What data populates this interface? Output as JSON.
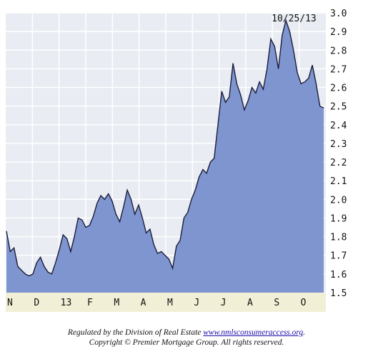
{
  "chart_data": {
    "type": "area",
    "title": "",
    "xlabel": "",
    "ylabel": "",
    "ylim": [
      1.5,
      3.0
    ],
    "yticks": [
      "3.0",
      "2.9",
      "2.8",
      "2.7",
      "2.6",
      "2.5",
      "2.4",
      "2.3",
      "2.2",
      "2.1",
      "2.0",
      "1.9",
      "1.8",
      "1.7",
      "1.6",
      "1.5"
    ],
    "xticks": [
      "N",
      "D",
      "13",
      "F",
      "M",
      "A",
      "M",
      "J",
      "J",
      "A",
      "S",
      "O"
    ],
    "grid": true,
    "annotation": {
      "text": "10/25/13",
      "value": 2.96
    },
    "series": [
      {
        "values": [
          1.83,
          1.72,
          1.74,
          1.64,
          1.62,
          1.6,
          1.59,
          1.6,
          1.66,
          1.69,
          1.64,
          1.61,
          1.6,
          1.66,
          1.73,
          1.81,
          1.79,
          1.72,
          1.8,
          1.9,
          1.89,
          1.85,
          1.86,
          1.91,
          1.98,
          2.02,
          2.0,
          2.03,
          1.99,
          1.92,
          1.88,
          1.96,
          2.05,
          2.0,
          1.92,
          1.97,
          1.9,
          1.82,
          1.84,
          1.76,
          1.71,
          1.72,
          1.7,
          1.68,
          1.63,
          1.75,
          1.78,
          1.9,
          1.93,
          2.0,
          2.05,
          2.12,
          2.16,
          2.14,
          2.2,
          2.22,
          2.4,
          2.58,
          2.52,
          2.55,
          2.73,
          2.62,
          2.56,
          2.48,
          2.53,
          2.6,
          2.57,
          2.63,
          2.59,
          2.7,
          2.86,
          2.82,
          2.7,
          2.88,
          2.96,
          2.9,
          2.8,
          2.68,
          2.62,
          2.63,
          2.65,
          2.72,
          2.62,
          2.5,
          2.49
        ]
      }
    ]
  },
  "footer": {
    "line1_text": "Regulated by the Division of Real Estate ",
    "line1_link": "www.nmlsconsumeraccess.org",
    "line1_end": ".",
    "line2": "Copyright © Premier Mortgage Group. All rights reserved."
  },
  "colors": {
    "fill": "#7f95cf",
    "line": "#1c1c3a",
    "plot_bg": "#e9edf3",
    "grid": "#ffffff",
    "axis_band": "#f1efd6"
  }
}
